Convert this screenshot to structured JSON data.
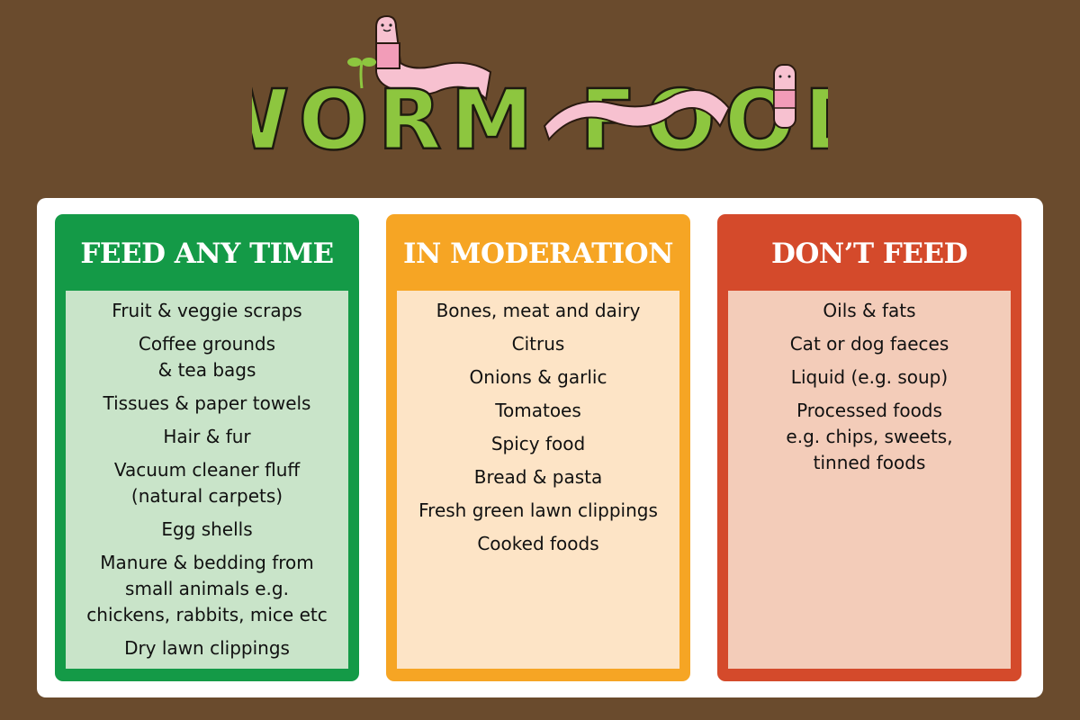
{
  "title": "WORM FOOD",
  "colors": {
    "background": "#6a4b2d",
    "green": "#149a47",
    "green_light": "#c9e4c9",
    "orange": "#f6a524",
    "orange_light": "#fde4c6",
    "red": "#d44a2b",
    "red_light": "#f3ccb9",
    "title_green": "#8dc63f",
    "worm_pink": "#f7c1d0"
  },
  "columns": [
    {
      "heading": "FEED ANY TIME",
      "items": [
        [
          "Fruit & veggie scraps"
        ],
        [
          "Coffee grounds",
          "& tea bags"
        ],
        [
          "Tissues & paper towels"
        ],
        [
          "Hair & fur"
        ],
        [
          "Vacuum cleaner fluff",
          "(natural carpets)"
        ],
        [
          "Egg shells"
        ],
        [
          "Manure & bedding from",
          "small animals e.g.",
          "chickens, rabbits, mice etc"
        ],
        [
          "Dry lawn clippings"
        ]
      ]
    },
    {
      "heading": "IN MODERATION",
      "items": [
        [
          "Bones, meat and dairy"
        ],
        [
          "Citrus"
        ],
        [
          "Onions & garlic"
        ],
        [
          "Tomatoes"
        ],
        [
          "Spicy food"
        ],
        [
          "Bread & pasta"
        ],
        [
          "Fresh green lawn clippings"
        ],
        [
          "Cooked foods"
        ]
      ]
    },
    {
      "heading": "DON’T FEED",
      "items": [
        [
          "Oils & fats"
        ],
        [
          "Cat or dog faeces"
        ],
        [
          "Liquid (e.g. soup)"
        ],
        [
          "Processed foods",
          "e.g. chips, sweets,",
          "tinned foods"
        ]
      ]
    }
  ]
}
